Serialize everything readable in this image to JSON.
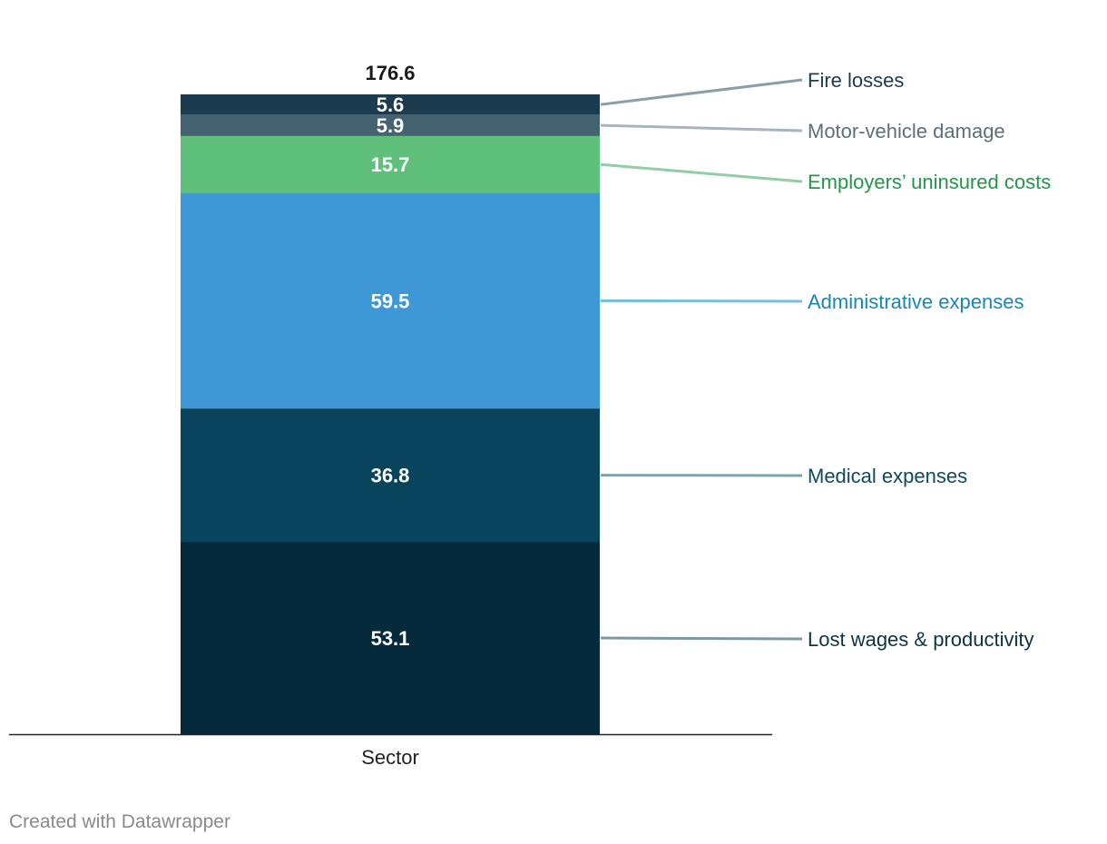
{
  "chart_data": {
    "type": "bar",
    "stacked": true,
    "categories": [
      "Sector"
    ],
    "series": [
      {
        "name": "Lost wages & productivity",
        "values": [
          53.1
        ],
        "color": "#042a3c",
        "label_color": "#0b3443",
        "leader_color": "#7e989f"
      },
      {
        "name": "Medical expenses",
        "values": [
          36.8
        ],
        "color": "#08455d",
        "label_color": "#0e4a60",
        "leader_color": "#7ea4ac"
      },
      {
        "name": "Administrative expenses",
        "values": [
          59.5
        ],
        "color": "#3d98d5",
        "label_color": "#1787b8",
        "leader_color": "#76bfd6"
      },
      {
        "name": "Employers’ uninsured costs",
        "values": [
          15.7
        ],
        "color": "#5ec07a",
        "label_color": "#23964a",
        "leader_color": "#93cda6"
      },
      {
        "name": "Motor-vehicle damage",
        "values": [
          5.9
        ],
        "color": "#44626f",
        "label_color": "#5f6f78",
        "leader_color": "#a6b4bb"
      },
      {
        "name": "Fire losses",
        "values": [
          5.6
        ],
        "color": "#1c3b4f",
        "label_color": "#1c3b4f",
        "leader_color": "#8a9ea7"
      }
    ],
    "total_label": "176.6",
    "ylim": [
      0,
      176.6
    ],
    "grid": false,
    "legend": "right, direct labels with leader lines"
  },
  "footer": {
    "credit": "Created with Datawrapper"
  }
}
